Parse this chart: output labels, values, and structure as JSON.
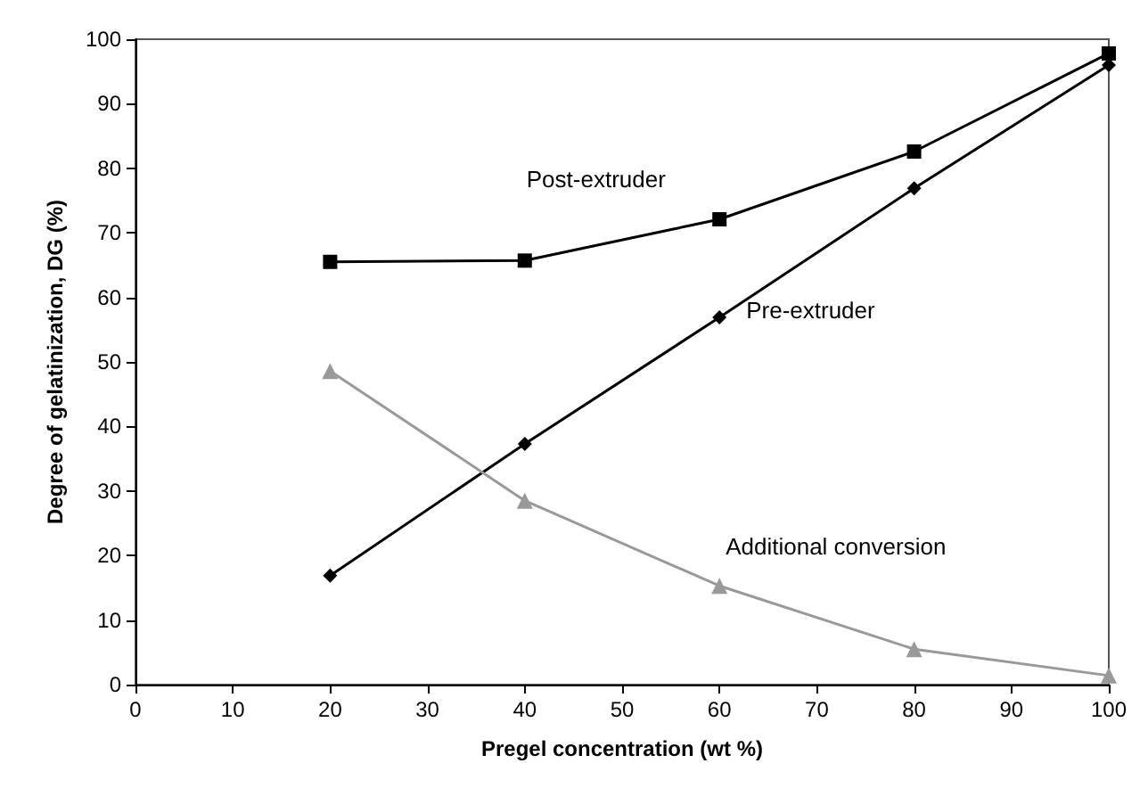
{
  "chart_data": {
    "type": "line",
    "xlabel": "Pregel concentration (wt %)",
    "ylabel": "Degree of gelatinization, DG (%)",
    "x": [
      20,
      40,
      60,
      80,
      100
    ],
    "series": [
      {
        "name": "Post-extruder",
        "color": "#000000",
        "marker": "square",
        "values": [
          65.5,
          65.7,
          72.1,
          82.6,
          97.8
        ]
      },
      {
        "name": "Pre-extruder",
        "color": "#000000",
        "marker": "diamond",
        "values": [
          16.9,
          37.3,
          56.9,
          76.9,
          96.0
        ]
      },
      {
        "name": "Additional conversion",
        "color": "#999999",
        "marker": "triangle",
        "values": [
          48.6,
          28.5,
          15.3,
          5.5,
          1.4
        ]
      }
    ],
    "xlim": [
      0,
      100
    ],
    "xticks": [
      0,
      10,
      20,
      30,
      40,
      50,
      60,
      70,
      80,
      90,
      100
    ],
    "ylim": [
      0,
      100
    ],
    "yticks": [
      0,
      10,
      20,
      30,
      40,
      50,
      60,
      70,
      80,
      90,
      100
    ],
    "grid": false,
    "legend": false,
    "line_style": "solid"
  }
}
